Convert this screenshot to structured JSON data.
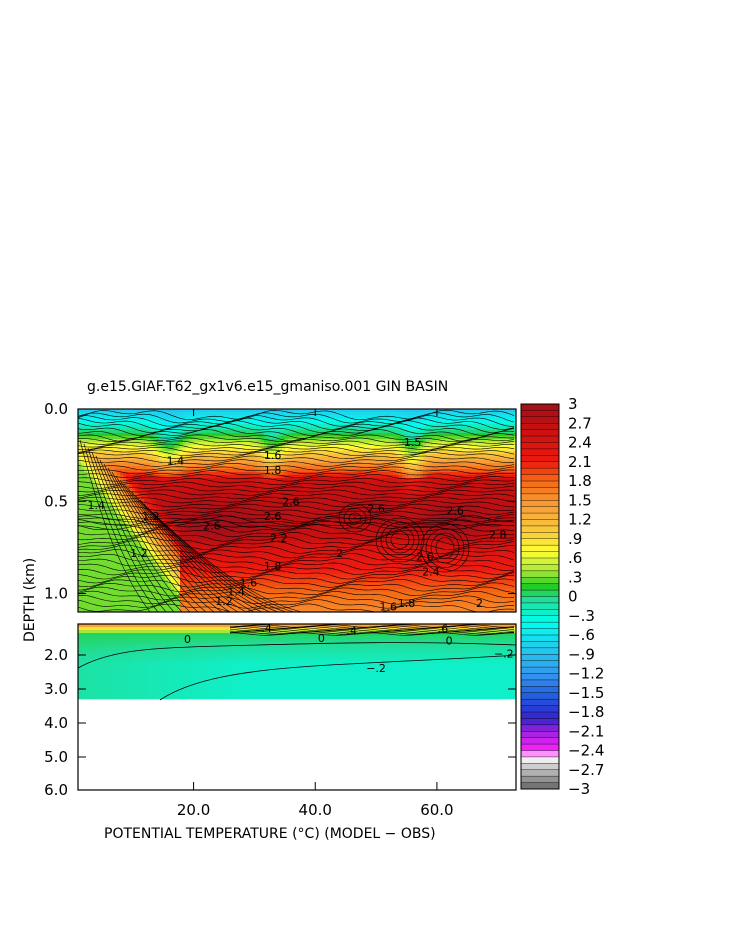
{
  "chart_data": {
    "type": "heatmap",
    "title": "g.e15.GIAF.T62_gx1v6.e15_gmaniso.001 GIN BASIN",
    "xlabel": "POTENTIAL TEMPERATURE (°C) (MODEL − OBS)",
    "ylabel": "DEPTH (km)",
    "xlim": [
      1,
      73
    ],
    "x_ticks": [
      "20.0",
      "40.0",
      "60.0"
    ],
    "x_tick_values": [
      20,
      40,
      60
    ],
    "y_ticks_upper": [
      "0.0",
      "0.5",
      "1.0"
    ],
    "y_tick_values_upper": [
      0.0,
      0.5,
      1.0
    ],
    "y_ticks_lower": [
      "2.0",
      "3.0",
      "4.0",
      "5.0",
      "6.0"
    ],
    "y_tick_values_lower": [
      2.0,
      3.0,
      4.0,
      5.0,
      6.0
    ],
    "upper_panel_ylim": [
      0.0,
      1.1
    ],
    "lower_panel_ylim": [
      1.1,
      6.0
    ],
    "data_extent_depth_km": 3.3,
    "colorbar": {
      "min": -3,
      "max": 3,
      "labels": [
        "3",
        "2.7",
        "2.4",
        "2.1",
        "1.8",
        "1.5",
        "1.2",
        ".9",
        ".6",
        ".3",
        "0",
        "−.3",
        "−.6",
        "−.9",
        "−1.2",
        "−1.5",
        "−1.8",
        "−2.1",
        "−2.4",
        "−2.7",
        "−3"
      ],
      "label_values": [
        3,
        2.7,
        2.4,
        2.1,
        1.8,
        1.5,
        1.2,
        0.9,
        0.6,
        0.3,
        0,
        -0.3,
        -0.6,
        -0.9,
        -1.2,
        -1.5,
        -1.8,
        -2.1,
        -2.4,
        -2.7,
        -3
      ],
      "stops": [
        {
          "v": 3.0,
          "c": "#a0101a"
        },
        {
          "v": 2.6,
          "c": "#c81010"
        },
        {
          "v": 2.1,
          "c": "#ee1a10"
        },
        {
          "v": 1.8,
          "c": "#f56a14"
        },
        {
          "v": 1.4,
          "c": "#f8a038"
        },
        {
          "v": 1.0,
          "c": "#f8cc3a"
        },
        {
          "v": 0.7,
          "c": "#ffff33"
        },
        {
          "v": 0.4,
          "c": "#a8e838"
        },
        {
          "v": 0.15,
          "c": "#22cc22"
        },
        {
          "v": -0.05,
          "c": "#22dd99"
        },
        {
          "v": -0.4,
          "c": "#00ffee"
        },
        {
          "v": -0.8,
          "c": "#22ccee"
        },
        {
          "v": -1.2,
          "c": "#3399ee"
        },
        {
          "v": -1.6,
          "c": "#2255dd"
        },
        {
          "v": -1.9,
          "c": "#3322cc"
        },
        {
          "v": -2.1,
          "c": "#9922dd"
        },
        {
          "v": -2.4,
          "c": "#ff22ff"
        },
        {
          "v": -2.5,
          "c": "#ffffff"
        },
        {
          "v": -2.6,
          "c": "#dddddd"
        },
        {
          "v": -3.0,
          "c": "#666666"
        }
      ]
    },
    "contour_labels_upper": [
      {
        "x": 23,
        "d": 0.63,
        "t": "2.6"
      },
      {
        "x": 33,
        "d": 0.58,
        "t": "2.6"
      },
      {
        "x": 34,
        "d": 0.7,
        "t": "2.2"
      },
      {
        "x": 36,
        "d": 0.5,
        "t": "2.6"
      },
      {
        "x": 33,
        "d": 0.85,
        "t": "1.8"
      },
      {
        "x": 29,
        "d": 0.94,
        "t": "1.6"
      },
      {
        "x": 27,
        "d": 0.99,
        "t": "1.4"
      },
      {
        "x": 25,
        "d": 1.04,
        "t": "1.2"
      },
      {
        "x": 13,
        "d": 0.58,
        "t": "1.2"
      },
      {
        "x": 11,
        "d": 0.78,
        "t": "1.2"
      },
      {
        "x": 4,
        "d": 0.52,
        "t": "1.4"
      },
      {
        "x": 50,
        "d": 0.54,
        "t": "2.6"
      },
      {
        "x": 63,
        "d": 0.55,
        "t": "2.6"
      },
      {
        "x": 58,
        "d": 0.8,
        "t": "2.6"
      },
      {
        "x": 59,
        "d": 0.88,
        "t": "2.4"
      },
      {
        "x": 70,
        "d": 0.68,
        "t": "2.8"
      },
      {
        "x": 44,
        "d": 0.78,
        "t": "2"
      },
      {
        "x": 67,
        "d": 1.05,
        "t": "2"
      },
      {
        "x": 55,
        "d": 1.05,
        "t": "1.8"
      },
      {
        "x": 52,
        "d": 1.07,
        "t": "1.6"
      },
      {
        "x": 33,
        "d": 0.25,
        "t": "1.6"
      },
      {
        "x": 33,
        "d": 0.33,
        "t": "1.8"
      },
      {
        "x": 17,
        "d": 0.28,
        "t": "1.4"
      },
      {
        "x": 56,
        "d": 0.18,
        "t": "1.5"
      }
    ],
    "contour_labels_lower": [
      {
        "x": 19,
        "d": 1.53,
        "t": "0"
      },
      {
        "x": 41,
        "d": 1.5,
        "t": "0"
      },
      {
        "x": 62,
        "d": 1.58,
        "t": "0"
      },
      {
        "x": 50,
        "d": 2.38,
        "t": "−.2"
      },
      {
        "x": 71,
        "d": 1.95,
        "t": "−.2"
      },
      {
        "x": 32,
        "d": 1.22,
        "t": ".4"
      },
      {
        "x": 46,
        "d": 1.29,
        "t": ".4"
      },
      {
        "x": 61,
        "d": 1.23,
        "t": ".6"
      }
    ]
  }
}
